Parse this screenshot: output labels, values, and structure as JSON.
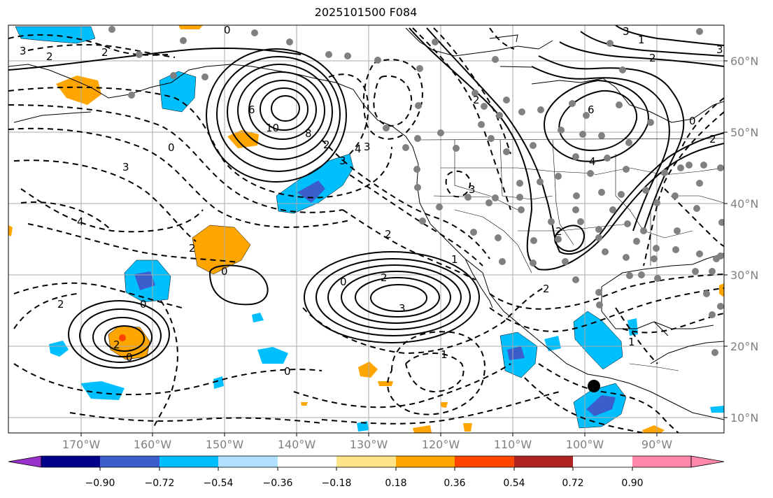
{
  "title": "2025101500 F084",
  "lat_labels": [
    "60°N",
    "50°N",
    "40°N",
    "30°N",
    "20°N",
    "10°N"
  ],
  "lon_labels": [
    "170°W",
    "160°W",
    "150°W",
    "140°W",
    "130°W",
    "120°W",
    "110°W",
    "100°W",
    "90°W"
  ],
  "contour_labels": [
    "3",
    "2",
    "2",
    "0",
    "6",
    "10",
    "8",
    "4",
    "3",
    "2",
    "3",
    "0",
    "4",
    "3",
    "2",
    "0",
    "2",
    "2",
    "3",
    "1",
    "2",
    "0",
    "2",
    "0",
    "2",
    "0",
    "1",
    "3",
    "3",
    "1",
    "2",
    "2",
    "0",
    "1",
    "0",
    "2",
    "4",
    "6",
    "2",
    "3"
  ],
  "colorbar": {
    "ticks": [
      "−0.90",
      "−0.72",
      "−0.54",
      "−0.36",
      "−0.18",
      "0.18",
      "0.36",
      "0.54",
      "0.72",
      "0.90"
    ],
    "colors": [
      "#9932cc",
      "#00008b",
      "#3a5fcd",
      "#00bfff",
      "#b0e2ff",
      "#ffffff",
      "#ffe48a",
      "#ffa500",
      "#ff4500",
      "#b22222",
      "#ff88aa"
    ]
  },
  "fill_colors": {
    "light_blue": "#00bfff",
    "mid_blue": "#3a5fcd",
    "orange": "#ffa500",
    "red": "#ff4500"
  }
}
